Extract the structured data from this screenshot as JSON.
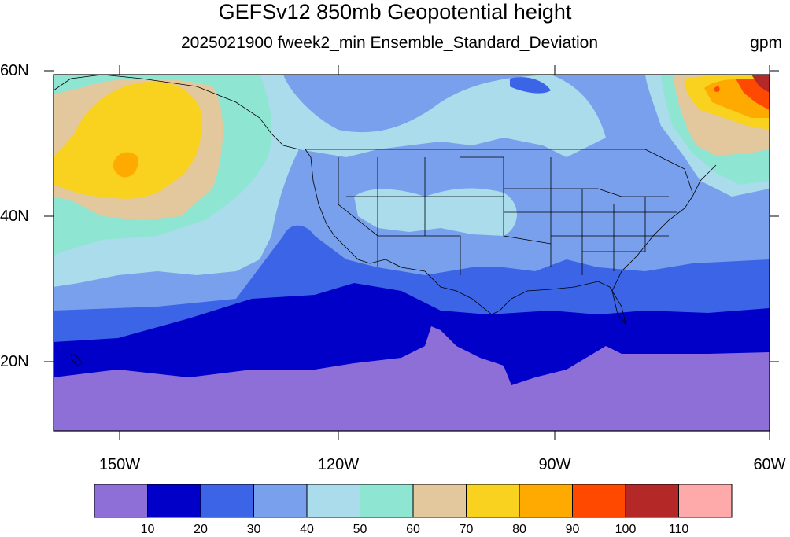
{
  "title": "GEFSv12 850mb Geopotential height",
  "subtitle": "2025021900 fweek2_min Ensemble_Standard_Deviation",
  "units": "gpm",
  "lat_labels": [
    "60N",
    "40N",
    "20N"
  ],
  "lon_labels": [
    "150W",
    "120W",
    "90W",
    "60W"
  ],
  "colorbar": {
    "colors": [
      "#8e6fd8",
      "#0000c8",
      "#3c64e6",
      "#78a0ec",
      "#aadcec",
      "#8ee6d2",
      "#e2c89c",
      "#f8d21e",
      "#ffaa00",
      "#ff4800",
      "#b42828",
      "#ffaaaa"
    ],
    "tick_labels": [
      "10",
      "20",
      "30",
      "40",
      "50",
      "60",
      "70",
      "80",
      "90",
      "100",
      "110"
    ]
  }
}
